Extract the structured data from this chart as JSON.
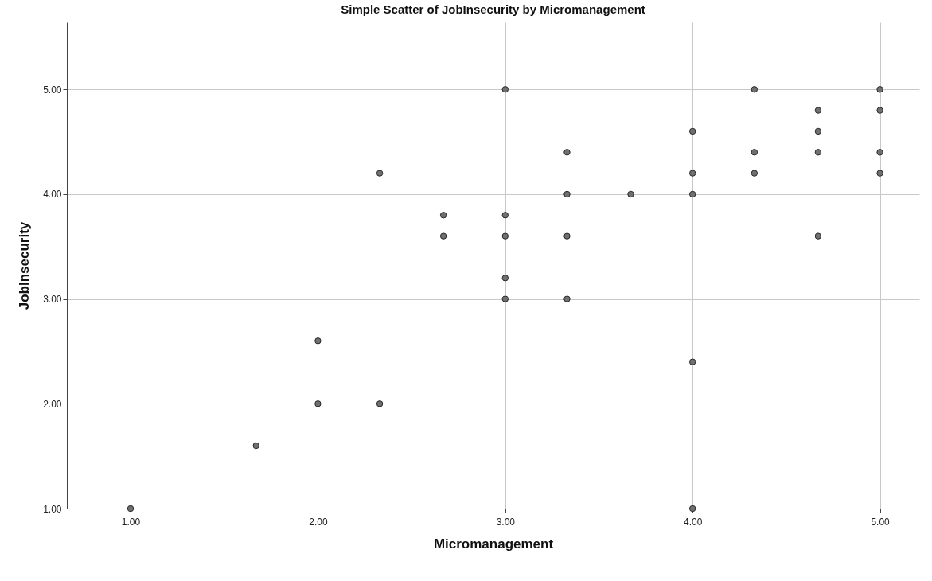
{
  "chart_data": {
    "type": "scatter",
    "title": "Simple Scatter of JobInsecurity by Micromanagement",
    "xlabel": "Micromanagement",
    "ylabel": "JobInsecurity",
    "x": [
      1,
      1.67,
      2,
      2,
      2.33,
      2.33,
      2.67,
      2.67,
      3,
      3,
      3,
      3,
      3,
      3.33,
      3.33,
      3.33,
      3.33,
      3.67,
      4,
      4,
      4,
      4,
      4,
      4.33,
      4.33,
      4.33,
      4.67,
      4.67,
      4.67,
      4.67,
      5,
      5,
      5,
      5
    ],
    "values": [
      1,
      1.6,
      2.6,
      2,
      4.2,
      2,
      3.8,
      3.6,
      5,
      3.8,
      3.6,
      3.2,
      3,
      4.4,
      4,
      3.6,
      3,
      4,
      4.6,
      4.2,
      4,
      2.4,
      1,
      5,
      4.4,
      4.2,
      4.8,
      4.6,
      4.4,
      3.6,
      5,
      4.8,
      4.4,
      4.2
    ],
    "color": "#707070",
    "marker": "circle",
    "grid": true,
    "xlim": [
      0.66,
      5.21
    ],
    "ylim": [
      1,
      5.64
    ],
    "xticks": [
      {
        "value": 1,
        "label": "1.00"
      },
      {
        "value": 2,
        "label": "2.00"
      },
      {
        "value": 3,
        "label": "3.00"
      },
      {
        "value": 4,
        "label": "4.00"
      },
      {
        "value": 5,
        "label": "5.00"
      }
    ],
    "yticks": [
      {
        "value": 1,
        "label": "1.00"
      },
      {
        "value": 2,
        "label": "2.00"
      },
      {
        "value": 3,
        "label": "3.00"
      },
      {
        "value": 4,
        "label": "4.00"
      },
      {
        "value": 5,
        "label": "5.00"
      }
    ]
  }
}
